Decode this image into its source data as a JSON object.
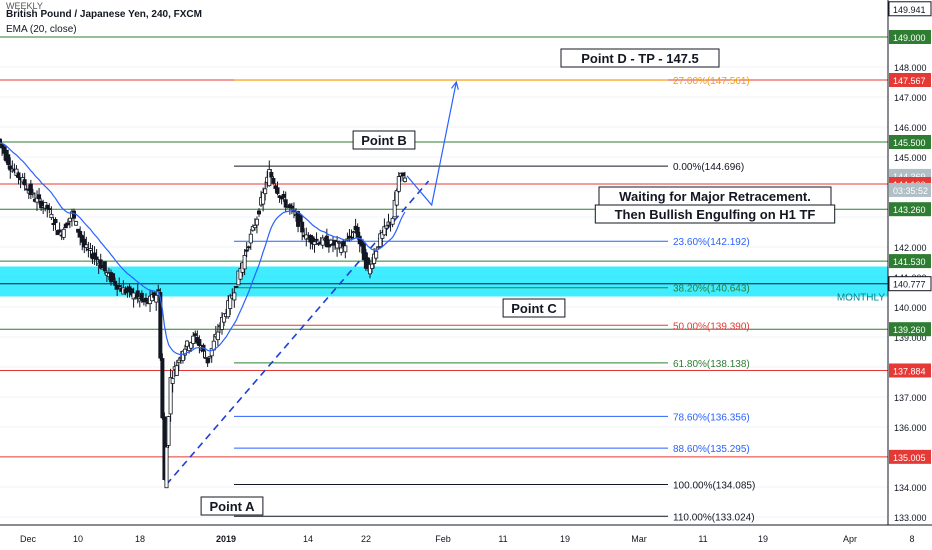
{
  "header": {
    "title": "British Pound / Japanese Yen, 240, FXCM",
    "indicator": "EMA (20, close)",
    "watermark": "WEEKLY"
  },
  "chart_data": {
    "type": "candlestick",
    "symbol": "GBPJPY",
    "timeframe": "240",
    "ylim": [
      132.9,
      150.1
    ],
    "x_ticks": [
      "Dec",
      "10",
      "18",
      "2019",
      "14",
      "22",
      "Feb",
      "11",
      "19",
      "Mar",
      "11",
      "19",
      "Apr",
      "8"
    ],
    "price_labels": [
      {
        "value": 149.941,
        "text": "149.941",
        "kind": "boxed"
      },
      {
        "value": 149.0,
        "text": "149.000",
        "kind": "green"
      },
      {
        "value": 147.567,
        "text": "147.567",
        "kind": "red"
      },
      {
        "value": 145.5,
        "text": "145.500",
        "kind": "green"
      },
      {
        "value": 144.369,
        "text": "144.369",
        "kind": "grey"
      },
      {
        "value": 144.1,
        "text": "144.100",
        "kind": "red"
      },
      {
        "value": 143.26,
        "text": "143.260",
        "kind": "green"
      },
      {
        "value": 141.53,
        "text": "141.530",
        "kind": "green"
      },
      {
        "value": 140.777,
        "text": "140.777",
        "kind": "boxed"
      },
      {
        "value": 139.26,
        "text": "139.260",
        "kind": "green"
      },
      {
        "value": 137.884,
        "text": "137.884",
        "kind": "red"
      },
      {
        "value": 135.005,
        "text": "135.005",
        "kind": "red"
      }
    ],
    "countdown": "03:35:52",
    "axis_ticks": [
      "148.000",
      "147.000",
      "146.000",
      "145.000",
      "142.000",
      "141.000",
      "140.000",
      "139.000",
      "138.000",
      "137.000",
      "136.000",
      "134.000",
      "133.000"
    ],
    "horizontal_levels": [
      {
        "value": 149.0,
        "color": "#2e7d32"
      },
      {
        "value": 147.567,
        "color": "#e53935"
      },
      {
        "value": 145.5,
        "color": "#2e7d32"
      },
      {
        "value": 144.1,
        "color": "#e53935"
      },
      {
        "value": 143.26,
        "color": "#2e7d32"
      },
      {
        "value": 141.53,
        "color": "#2e7d32"
      },
      {
        "value": 139.26,
        "color": "#2e7d32"
      },
      {
        "value": 137.884,
        "color": "#e53935"
      },
      {
        "value": 135.005,
        "color": "#e53935"
      }
    ],
    "monthly_zone": {
      "low": 140.35,
      "high": 141.35,
      "label": "MONTHLY",
      "color": "#00e5ff"
    },
    "fibonacci": [
      {
        "value": 147.561,
        "text": "27.00%(147.561)",
        "color": "#f59e0b"
      },
      {
        "value": 144.696,
        "text": "0.00%(144.696)",
        "color": "#131722"
      },
      {
        "value": 142.192,
        "text": "23.60%(142.192)",
        "color": "#2962ff"
      },
      {
        "value": 140.643,
        "text": "38.20%(140.643)",
        "color": "#2e7d32"
      },
      {
        "value": 139.39,
        "text": "50.00%(139.390)",
        "color": "#e53935"
      },
      {
        "value": 138.138,
        "text": "61.80%(138.138)",
        "color": "#2e7d32"
      },
      {
        "value": 136.356,
        "text": "78.60%(136.356)",
        "color": "#2962ff"
      },
      {
        "value": 135.295,
        "text": "88.60%(135.295)",
        "color": "#2962ff"
      },
      {
        "value": 134.085,
        "text": "100.00%(134.085)",
        "color": "#131722"
      },
      {
        "value": 133.024,
        "text": "110.00%(133.024)",
        "color": "#131722"
      }
    ],
    "annotations": [
      {
        "name": "point-a-label",
        "text": "Point A"
      },
      {
        "name": "point-b-label",
        "text": "Point B"
      },
      {
        "name": "point-c-label",
        "text": "Point C"
      },
      {
        "name": "point-d-label",
        "text": "Point D - TP - 147.5"
      },
      {
        "name": "retracement-note-line1",
        "text": "Waiting for Major Retracement."
      },
      {
        "name": "retracement-note-line2",
        "text": "Then Bullish Engulfing on H1 TF"
      }
    ],
    "price_path": [
      {
        "t": 0,
        "v": 145.6
      },
      {
        "t": 2,
        "v": 144.7
      },
      {
        "t": 4,
        "v": 144.2
      },
      {
        "t": 6,
        "v": 143.6
      },
      {
        "t": 8,
        "v": 143.3
      },
      {
        "t": 10,
        "v": 142.4
      },
      {
        "t": 12,
        "v": 143.1
      },
      {
        "t": 14,
        "v": 142.0
      },
      {
        "t": 16,
        "v": 141.6
      },
      {
        "t": 18,
        "v": 141.0
      },
      {
        "t": 20,
        "v": 140.6
      },
      {
        "t": 22,
        "v": 140.4
      },
      {
        "t": 24,
        "v": 140.1
      },
      {
        "t": 26,
        "v": 140.5
      },
      {
        "t": 27,
        "v": 134.2
      },
      {
        "t": 28,
        "v": 137.6
      },
      {
        "t": 30,
        "v": 138.6
      },
      {
        "t": 32,
        "v": 139.0
      },
      {
        "t": 34,
        "v": 138.2
      },
      {
        "t": 36,
        "v": 139.4
      },
      {
        "t": 38,
        "v": 140.4
      },
      {
        "t": 40,
        "v": 141.7
      },
      {
        "t": 42,
        "v": 143.0
      },
      {
        "t": 44,
        "v": 144.5
      },
      {
        "t": 46,
        "v": 143.6
      },
      {
        "t": 48,
        "v": 143.1
      },
      {
        "t": 50,
        "v": 142.3
      },
      {
        "t": 52,
        "v": 142.2
      },
      {
        "t": 54,
        "v": 142.1
      },
      {
        "t": 56,
        "v": 142.0
      },
      {
        "t": 58,
        "v": 142.6
      },
      {
        "t": 60,
        "v": 141.2
      },
      {
        "t": 62,
        "v": 142.3
      },
      {
        "t": 64,
        "v": 143.0
      },
      {
        "t": 65,
        "v": 144.3
      },
      {
        "t": 66,
        "v": 144.37
      }
    ],
    "projection": [
      {
        "t": 66,
        "v": 144.37
      },
      {
        "t": 70,
        "v": 143.4
      },
      {
        "t": 74,
        "v": 147.5
      }
    ]
  }
}
